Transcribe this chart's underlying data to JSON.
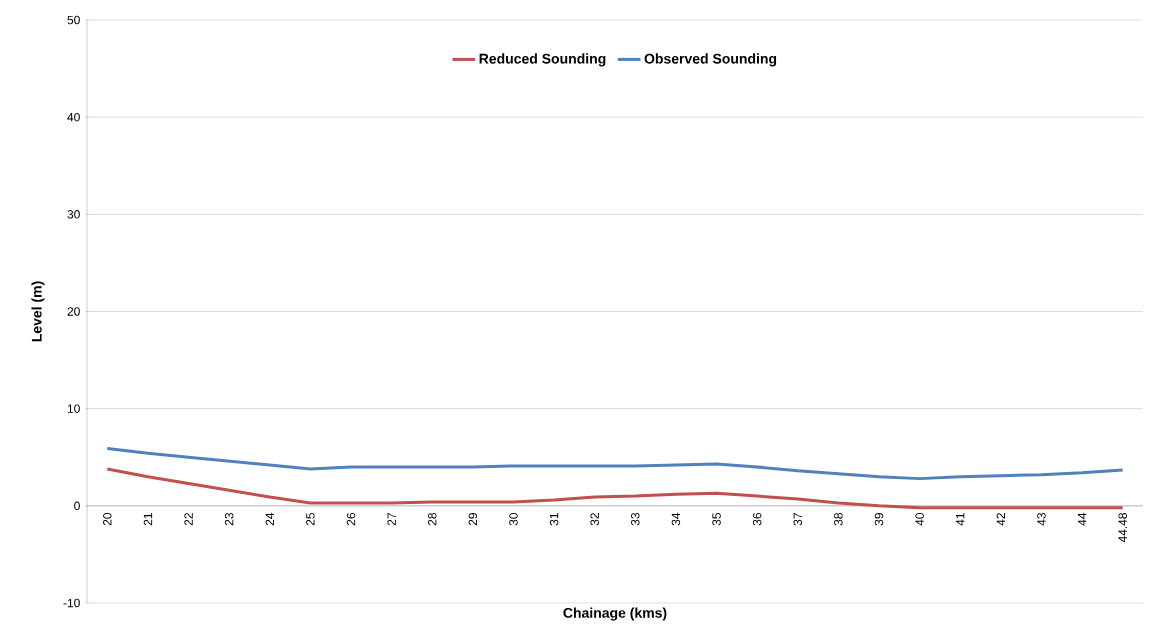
{
  "chart_data": {
    "type": "line",
    "xlabel": "Chainage (kms)",
    "ylabel": "Level (m)",
    "categories": [
      "20",
      "21",
      "22",
      "23",
      "24",
      "25",
      "26",
      "27",
      "28",
      "29",
      "30",
      "31",
      "32",
      "33",
      "34",
      "35",
      "36",
      "37",
      "38",
      "39",
      "40",
      "41",
      "42",
      "43",
      "44",
      "44.48"
    ],
    "series": [
      {
        "name": "Reduced Sounding",
        "color": "#c0504d",
        "values": [
          3.8,
          3.0,
          2.3,
          1.6,
          0.9,
          0.3,
          0.3,
          0.3,
          0.4,
          0.4,
          0.4,
          0.6,
          0.9,
          1.0,
          1.2,
          1.3,
          1.0,
          0.7,
          0.3,
          0.0,
          -0.2,
          -0.2,
          -0.2,
          -0.2,
          -0.2,
          -0.2
        ]
      },
      {
        "name": "Observed Sounding",
        "color": "#4f81bd",
        "values": [
          5.9,
          5.4,
          5.0,
          4.6,
          4.2,
          3.8,
          4.0,
          4.0,
          4.0,
          4.0,
          4.1,
          4.1,
          4.1,
          4.1,
          4.2,
          4.3,
          4.0,
          3.6,
          3.3,
          3.0,
          2.8,
          3.0,
          3.1,
          3.2,
          3.4,
          3.7
        ]
      }
    ],
    "ylim": [
      -10,
      50
    ],
    "yticks": [
      -10,
      0,
      10,
      20,
      30,
      40,
      50
    ],
    "grid": "y",
    "legend": "top"
  }
}
